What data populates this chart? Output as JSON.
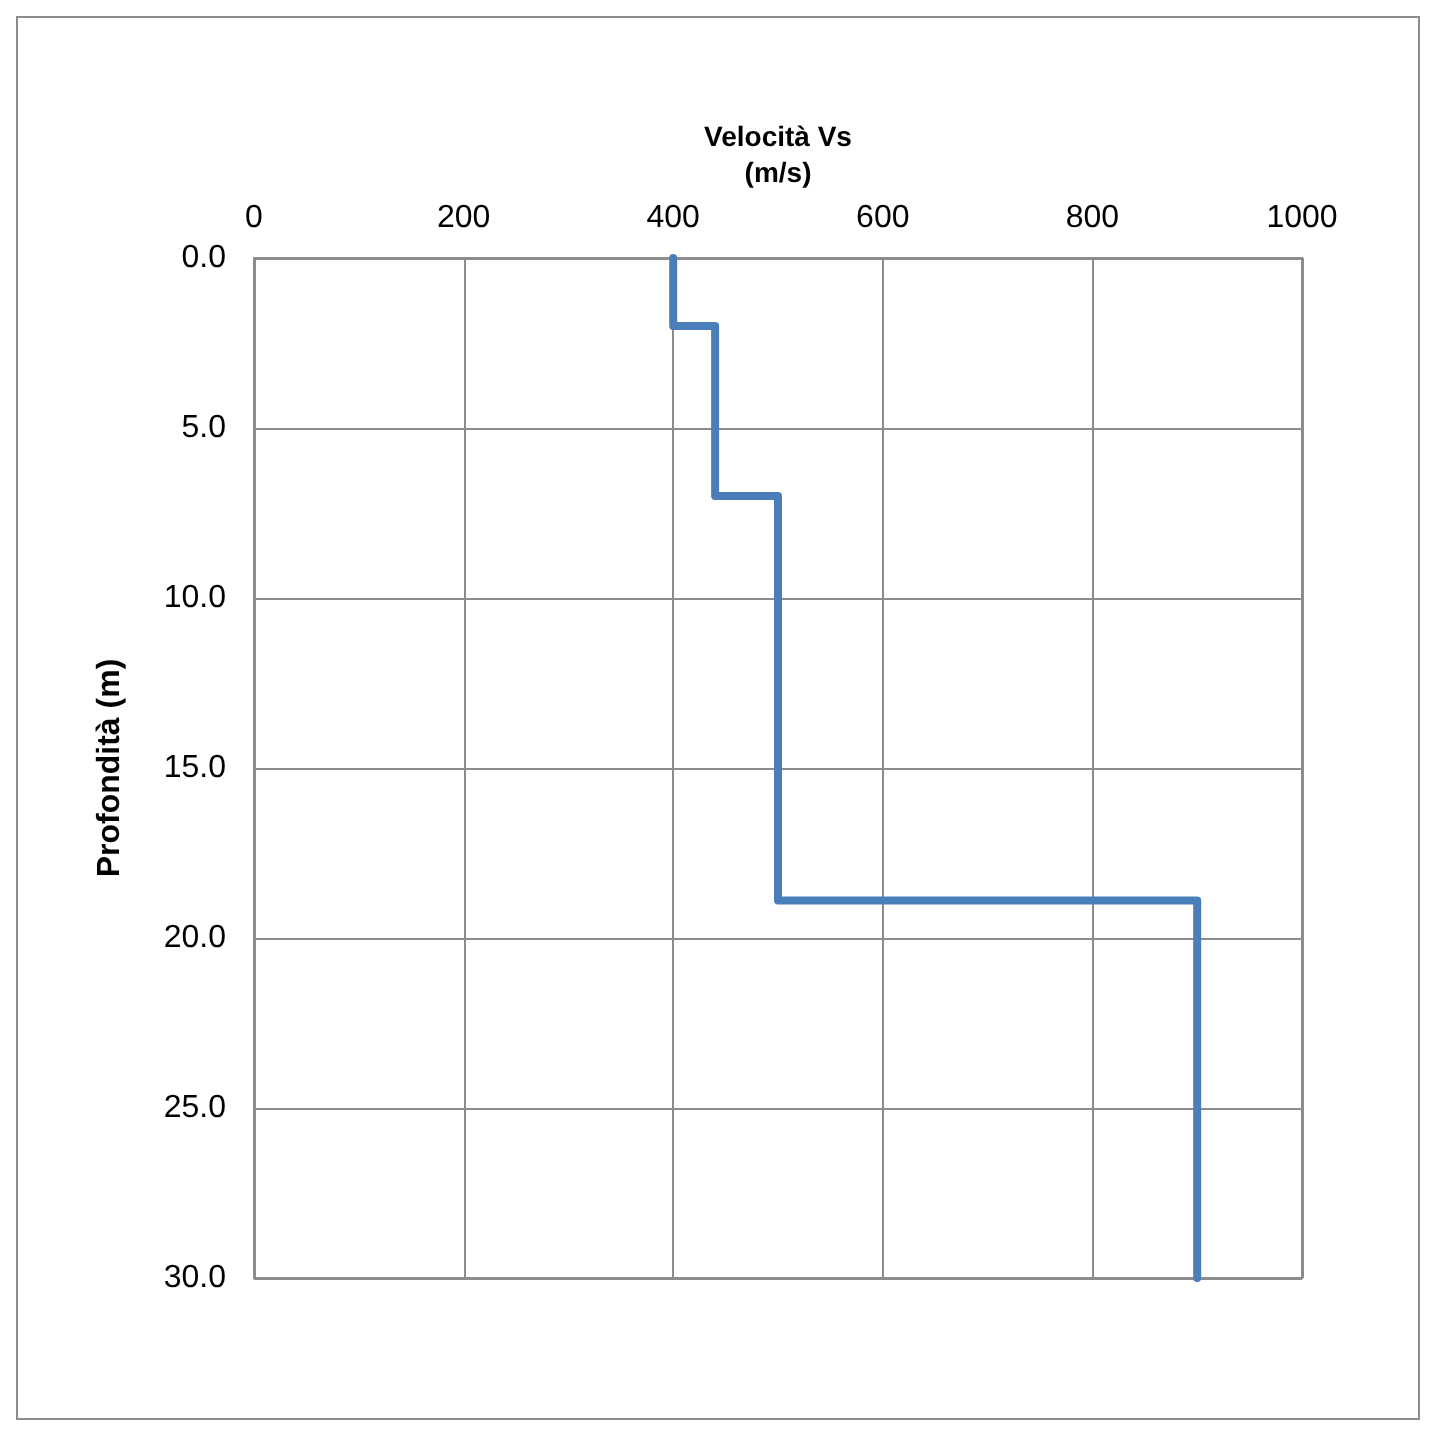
{
  "chart_data": {
    "type": "line",
    "xlabel": "Velocità Vs\n(m/s)",
    "ylabel": "Profondità (m)",
    "x": [
      400,
      400,
      440,
      440,
      500,
      500,
      900,
      900
    ],
    "series": [
      {
        "color": "#4a7ebb",
        "values": [
          0,
          2,
          2,
          7,
          7,
          18.9,
          18.9,
          30
        ]
      }
    ],
    "xlim": [
      0,
      1000
    ],
    "xticks": [
      0,
      200,
      400,
      600,
      800,
      1000
    ],
    "ylim": [
      30,
      0
    ],
    "yticks": [
      {
        "value": 0,
        "label": "0.0"
      },
      {
        "value": 5,
        "label": "5.0"
      },
      {
        "value": 10,
        "label": "10.0"
      },
      {
        "value": 15,
        "label": "15.0"
      },
      {
        "value": 20,
        "label": "20.0"
      },
      {
        "value": 25,
        "label": "25.0"
      },
      {
        "value": 30,
        "label": "30.0"
      }
    ],
    "grid": true,
    "marker": "none",
    "line_style": "solid"
  }
}
